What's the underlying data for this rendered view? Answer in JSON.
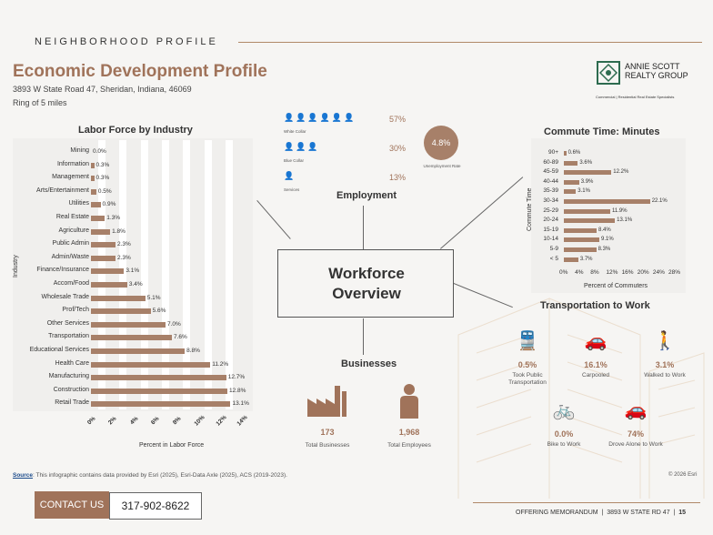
{
  "header": {
    "section_tag": "NEIGHBORHOOD PROFILE",
    "title": "Economic Development Profile",
    "address": "3893 W State Road 47, Sheridan, Indiana, 46069",
    "ring": "Ring of 5 miles"
  },
  "logo": {
    "name_line1": "ANNIE SCOTT",
    "name_line2": "REALTY GROUP",
    "tagline": "Commercial | Residential Real Estate Specialists"
  },
  "labor_force": {
    "title": "Labor Force by Industry",
    "ylabel": "Industry",
    "xlabel": "Percent in Labor Force"
  },
  "chart_data": [
    {
      "type": "bar",
      "title": "Labor Force by Industry",
      "xlabel": "Percent in Labor Force",
      "ylabel": "Industry",
      "orientation": "horizontal",
      "categories": [
        "Mining",
        "Information",
        "Management",
        "Arts/Entertainment",
        "Utilities",
        "Real Estate",
        "Agriculture",
        "Public Admin",
        "Admin/Waste",
        "Finance/Insurance",
        "Accom/Food",
        "Wholesale Trade",
        "Prof/Tech",
        "Other Services",
        "Transportation",
        "Educational Services",
        "Health Care",
        "Manufacturing",
        "Construction",
        "Retail Trade"
      ],
      "values": [
        0.0,
        0.3,
        0.3,
        0.5,
        0.9,
        1.3,
        1.8,
        2.3,
        2.3,
        3.1,
        3.4,
        5.1,
        5.6,
        7.0,
        7.6,
        8.8,
        11.2,
        12.7,
        12.8,
        13.1
      ],
      "value_labels": [
        "0.0%",
        "0.3%",
        "0.3%",
        "0.5%",
        "0.9%",
        "1.3%",
        "1.8%",
        "2.3%",
        "2.3%",
        "3.1%",
        "3.4%",
        "5.1%",
        "5.6%",
        "7.0%",
        "7.6%",
        "8.8%",
        "11.2%",
        "12.7%",
        "12.8%",
        "13.1%"
      ],
      "xticks": [
        "0%",
        "2%",
        "4%",
        "6%",
        "8%",
        "10%",
        "12%",
        "14%"
      ],
      "xlim": [
        0,
        14
      ]
    },
    {
      "type": "bar",
      "title": "Commute Time: Minutes",
      "xlabel": "Percent of Commuters",
      "ylabel": "Commute Time",
      "orientation": "horizontal",
      "categories": [
        "90+",
        "60-89",
        "45-59",
        "40-44",
        "35-39",
        "30-34",
        "25-29",
        "20-24",
        "15-19",
        "10-14",
        "5-9",
        "< 5"
      ],
      "values": [
        0.6,
        3.6,
        12.2,
        3.9,
        3.1,
        22.1,
        11.9,
        13.1,
        8.4,
        9.1,
        8.3,
        3.7
      ],
      "value_labels": [
        "0.6%",
        "3.6%",
        "12.2%",
        "3.9%",
        "3.1%",
        "22.1%",
        "11.9%",
        "13.1%",
        "8.4%",
        "9.1%",
        "8.3%",
        "3.7%"
      ],
      "xticks": [
        "0%",
        "4%",
        "8%",
        "12%",
        "16%",
        "20%",
        "24%",
        "28%"
      ],
      "xlim": [
        0,
        28
      ]
    }
  ],
  "employment": {
    "title": "Employment",
    "rows": [
      {
        "label": "White Collar",
        "pct": "57%",
        "icons": "👤👤👤👤👤👤"
      },
      {
        "label": "Blue Collar",
        "pct": "30%",
        "icons": "👤👤👤"
      },
      {
        "label": "Services",
        "pct": "13%",
        "icons": "👤"
      }
    ],
    "unemployment_rate": "4.8%",
    "unemployment_label": "Unemployment Rate"
  },
  "center": {
    "line1": "Workforce",
    "line2": "Overview"
  },
  "commute": {
    "title": "Commute Time: Minutes",
    "ylabel": "Commute Time",
    "xlabel": "Percent of Commuters"
  },
  "transport": {
    "title": "Transportation to Work",
    "items": [
      {
        "pct": "0.5%",
        "label": "Took Public Transportation",
        "icon": "train-icon"
      },
      {
        "pct": "16.1%",
        "label": "Carpooled",
        "icon": "car-icon"
      },
      {
        "pct": "3.1%",
        "label": "Walked to Work",
        "icon": "walker-icon"
      },
      {
        "pct": "0.0%",
        "label": "Bike to Work",
        "icon": "bicycle-icon"
      },
      {
        "pct": "74%",
        "label": "Drove Alone to Work",
        "icon": "car-icon"
      }
    ]
  },
  "businesses": {
    "title": "Businesses",
    "total_businesses": "173",
    "total_businesses_label": "Total Businesses",
    "total_employees": "1,968",
    "total_employees_label": "Total Employees"
  },
  "footer": {
    "source_label": "Source",
    "source_text": ": This infographic contains data provided by Esri (2025), Esri-Data Axle (2025), ACS (2019-2023).",
    "copyright": "© 2026 Esri",
    "contact_label": "CONTACT US",
    "phone": "317-902-8622",
    "doc_label": "OFFERING MEMORANDUM",
    "doc_address": "3893 W STATE RD 47",
    "page": "15"
  },
  "colors": {
    "accent": "#a0735a",
    "bar": "#a78069"
  }
}
